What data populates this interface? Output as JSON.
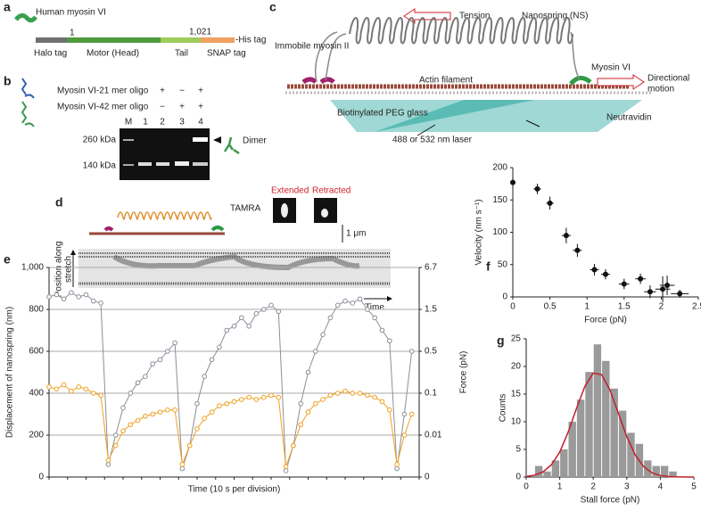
{
  "panel_labels": [
    "a",
    "b",
    "c",
    "d",
    "e",
    "f",
    "g"
  ],
  "a": {
    "title": "Human myosin VI",
    "start": "1",
    "end": "1,021",
    "domains": [
      "Halo tag",
      "Motor (Head)",
      "Tail",
      "SNAP tag"
    ],
    "his": "-His tag"
  },
  "b": {
    "rows": [
      {
        "label": "Myosin VI-21 mer oligo",
        "signs": [
          "+",
          "−",
          "+"
        ]
      },
      {
        "label": "Myosin VI-42 mer oligo",
        "signs": [
          "−",
          "+",
          "+"
        ]
      }
    ],
    "lanes": [
      "M",
      "1",
      "2",
      "3",
      "4"
    ],
    "markers": [
      "260 kDa",
      "140 kDa"
    ],
    "dimer": "Dimer"
  },
  "c": {
    "tension": "Tension",
    "nanospring": "Nanospring (NS)",
    "myosin2": "Immobile myosin II",
    "myosin6": "Myosin VI",
    "motion": [
      "Directional",
      "motion"
    ],
    "actin": "Actin filament",
    "glass": "Biotinylated PEG glass",
    "neutravidin": "Neutravidin",
    "laser": "488 or 532 nm laser"
  },
  "d": {
    "tamra": "TAMRA",
    "extended": "Extended",
    "retracted": "Retracted",
    "scale": "1 μm",
    "ylabel": [
      "Position along",
      "stretch"
    ],
    "xlabel": "Time"
  },
  "chart_data": [
    {
      "type": "line",
      "xlabel": "Time (10 s per division)",
      "ylabel": "Displacement of nanospring (nm)",
      "y2label": "Force (pN)",
      "x": [
        0,
        4,
        8,
        12,
        16,
        20,
        24,
        28,
        32,
        36,
        40,
        44,
        48,
        52,
        56,
        60,
        64,
        68,
        72,
        76,
        80,
        84,
        88,
        92,
        96,
        100,
        104,
        108,
        112,
        116,
        120,
        124,
        128,
        132,
        136,
        140,
        144,
        148,
        152,
        156,
        160,
        164,
        168,
        172,
        176,
        180,
        184,
        188,
        192,
        196
      ],
      "xlim": [
        0,
        200
      ],
      "xticks": [
        0,
        10,
        20,
        30,
        40,
        50,
        60,
        70,
        80,
        90,
        100,
        110,
        120,
        130,
        140,
        150,
        160,
        170,
        180,
        190,
        200
      ],
      "ylim": [
        0,
        1000
      ],
      "yticks": [
        0,
        200,
        400,
        600,
        800,
        {
          "value": 1000,
          "label": "1,000"
        }
      ],
      "y2lim": [
        0,
        6.7
      ],
      "y2ticks": [
        0,
        0.01,
        0.1,
        0.5,
        1.5,
        6.7
      ],
      "grid": true,
      "series": [
        {
          "color": "#8a8f99",
          "values": [
            860,
            870,
            850,
            880,
            860,
            870,
            840,
            830,
            60,
            200,
            330,
            400,
            450,
            480,
            540,
            560,
            600,
            640,
            40,
            150,
            350,
            480,
            560,
            620,
            700,
            720,
            760,
            720,
            780,
            800,
            820,
            790,
            30,
            150,
            350,
            500,
            600,
            680,
            760,
            820,
            840,
            830,
            850,
            800,
            760,
            700,
            650,
            40,
            300,
            600
          ]
        },
        {
          "color": "#f0a020",
          "values": [
            430,
            420,
            440,
            410,
            430,
            420,
            400,
            390,
            80,
            150,
            220,
            250,
            270,
            290,
            300,
            310,
            320,
            320,
            60,
            150,
            230,
            280,
            310,
            340,
            350,
            360,
            370,
            380,
            370,
            380,
            390,
            380,
            50,
            150,
            250,
            310,
            350,
            370,
            390,
            400,
            410,
            400,
            400,
            390,
            380,
            360,
            320,
            60,
            200,
            300
          ]
        }
      ]
    },
    {
      "type": "scatter",
      "xlabel": "Force (pN)",
      "ylabel": "Velocity (nm s⁻¹)",
      "color": "#111",
      "x": [
        0,
        0.33,
        0.5,
        0.72,
        0.87,
        1.1,
        1.25,
        1.5,
        1.72,
        1.85,
        2.02,
        2.08,
        2.25
      ],
      "values": [
        177,
        167,
        145,
        95,
        72,
        42,
        35,
        20,
        28,
        8,
        12,
        18,
        5
      ],
      "xerr": [
        0,
        0.05,
        0.05,
        0.06,
        0.06,
        0.06,
        0.06,
        0.07,
        0.07,
        0.08,
        0.1,
        0.1,
        0.12
      ],
      "yerr": [
        8,
        8,
        10,
        12,
        10,
        9,
        8,
        8,
        8,
        10,
        20,
        15,
        6
      ],
      "xlim": [
        0,
        2.5
      ],
      "xticks": [
        0,
        0.5,
        1,
        1.5,
        2,
        2.5
      ],
      "ylim": [
        0,
        200
      ],
      "yticks": [
        0,
        50,
        100,
        150,
        200
      ]
    },
    {
      "type": "histogram",
      "xlabel": "Stall force (pN)",
      "ylabel": "Counts",
      "color": "#9a9a9a",
      "bins": [
        0.25,
        0.5,
        0.75,
        1,
        1.25,
        1.5,
        1.75,
        2,
        2.25,
        2.5,
        2.75,
        3,
        3.25,
        3.5,
        3.75,
        4,
        4.25,
        4.5
      ],
      "counts": [
        2,
        1,
        3,
        5,
        10,
        14,
        19,
        24,
        21,
        16,
        12,
        8,
        6,
        3,
        2,
        2,
        1
      ],
      "fit": {
        "color": "#c0202a",
        "x": [
          0,
          0.25,
          0.5,
          0.75,
          1,
          1.25,
          1.5,
          1.75,
          2,
          2.25,
          2.5,
          2.75,
          3,
          3.25,
          3.5,
          3.75,
          4,
          4.25,
          4.5,
          4.75,
          5
        ],
        "values": [
          0.1,
          0.33,
          0.92,
          2.2,
          4.5,
          8.1,
          12.4,
          16.4,
          18.8,
          18.5,
          15.7,
          11.5,
          7.3,
          4.0,
          1.9,
          0.76,
          0.27,
          0.08,
          0.02,
          0,
          0
        ]
      },
      "xlim": [
        0,
        5
      ],
      "xticks": [
        0,
        1,
        2,
        3,
        4,
        5
      ],
      "ylim": [
        0,
        25
      ],
      "yticks": [
        0,
        5,
        10,
        15,
        20,
        25
      ]
    }
  ]
}
